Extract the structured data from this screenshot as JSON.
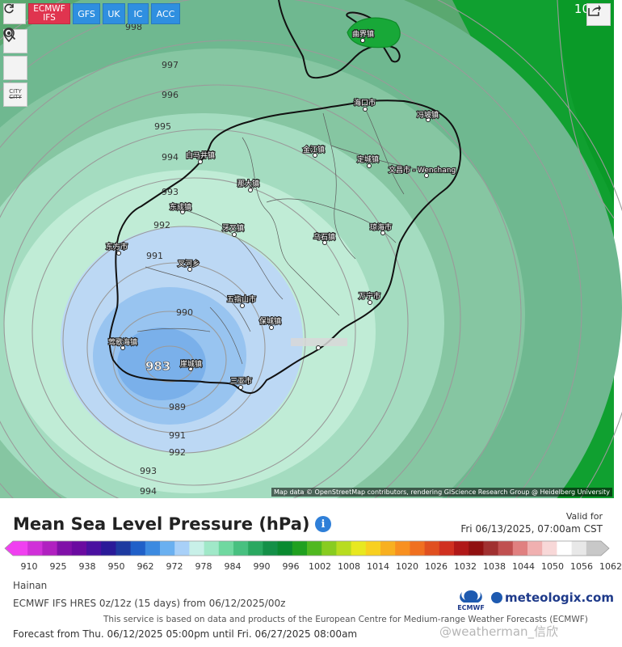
{
  "toolbar": {
    "models": [
      {
        "label_line1": "ECMWF",
        "label_line2": "IFS",
        "active": true
      },
      {
        "label": "GFS"
      },
      {
        "label": "UK"
      },
      {
        "label": "IC"
      },
      {
        "label": "ACC"
      }
    ],
    "side_tools": [
      {
        "icon": "refresh-icon",
        "glyph": "↻"
      },
      {
        "icon": "location-pin-icon",
        "glyph": "⚲"
      },
      {
        "icon": "zoom-icon",
        "glyph": "🔍"
      },
      {
        "icon": "city-toggle-icon",
        "line1": "CITY",
        "line2": "CITY"
      }
    ],
    "share_icon": "share-icon"
  },
  "map": {
    "corner_number": "10",
    "isobar_labels": [
      "998",
      "997",
      "996",
      "995",
      "994",
      "993",
      "992",
      "991",
      "990",
      "989",
      "983",
      "991",
      "992",
      "993",
      "994"
    ],
    "cities": [
      {
        "name": "曲界镇"
      },
      {
        "name": "海口市"
      },
      {
        "name": "冯坡镇"
      },
      {
        "name": "金江镇"
      },
      {
        "name": "白马井镇"
      },
      {
        "name": "定城镇"
      },
      {
        "name": "文昌市 - Wenchang"
      },
      {
        "name": "那大镇"
      },
      {
        "name": "东成镇"
      },
      {
        "name": "琼海市"
      },
      {
        "name": "牙叉镇"
      },
      {
        "name": "乌石镇"
      },
      {
        "name": "东方市"
      },
      {
        "name": "叉河乡"
      },
      {
        "name": "五指山市"
      },
      {
        "name": "万宁市"
      },
      {
        "name": "保城镇"
      },
      {
        "name": "莺歌海镇"
      },
      {
        "name": "崖城镇"
      },
      {
        "name": "三亚市"
      }
    ],
    "attribution": "Map data © OpenStreetMap contributors, rendering GIScience Research Group @ Heidelberg University"
  },
  "info": {
    "title": "Mean Sea Level Pressure (hPa)",
    "valid_label": "Valid for",
    "valid_date": "Fri 06/13/2025, 07:00am CST",
    "region": "Hainan",
    "model_line": "ECMWF IFS HRES 0z/12z  (15 days)  from 06/12/2025/00z",
    "service_note": "This service is based on data and products of the European Centre for Medium-range Weather Forecasts (ECMWF)",
    "forecast_range": "Forecast from Thu. 06/12/2025 05:00pm until Fri. 06/27/2025 08:00am",
    "ecmwf_logo": "ECMWF",
    "brand": "meteologix.com",
    "watermark": "@weatherman_信欣"
  },
  "scale": {
    "labels": [
      "910",
      "925",
      "938",
      "950",
      "962",
      "972",
      "978",
      "984",
      "990",
      "996",
      "1002",
      "1008",
      "1014",
      "1020",
      "1026",
      "1032",
      "1038",
      "1044",
      "1050",
      "1056",
      "1062"
    ],
    "colors": [
      "#f040f0",
      "#d030d8",
      "#b020c0",
      "#8010a8",
      "#6a0aa0",
      "#4a10a0",
      "#2a1a98",
      "#1e3aa0",
      "#2060c8",
      "#3c8ae0",
      "#6ab0f0",
      "#a8d0f8",
      "#c8f0e8",
      "#a0e8c8",
      "#70d8a0",
      "#48c080",
      "#2aa860",
      "#149048",
      "#0a8a30",
      "#20a020",
      "#50b820",
      "#88cc20",
      "#b8dc20",
      "#e8e820",
      "#f8d020",
      "#f8b020",
      "#f89020",
      "#f07020",
      "#e05020",
      "#d03020",
      "#b01818",
      "#901010",
      "#a03030",
      "#c05050",
      "#e08080",
      "#f0b0b0",
      "#f8d8d8",
      "#ffffff",
      "#e8e8e8",
      "#c8c8c8"
    ]
  }
}
